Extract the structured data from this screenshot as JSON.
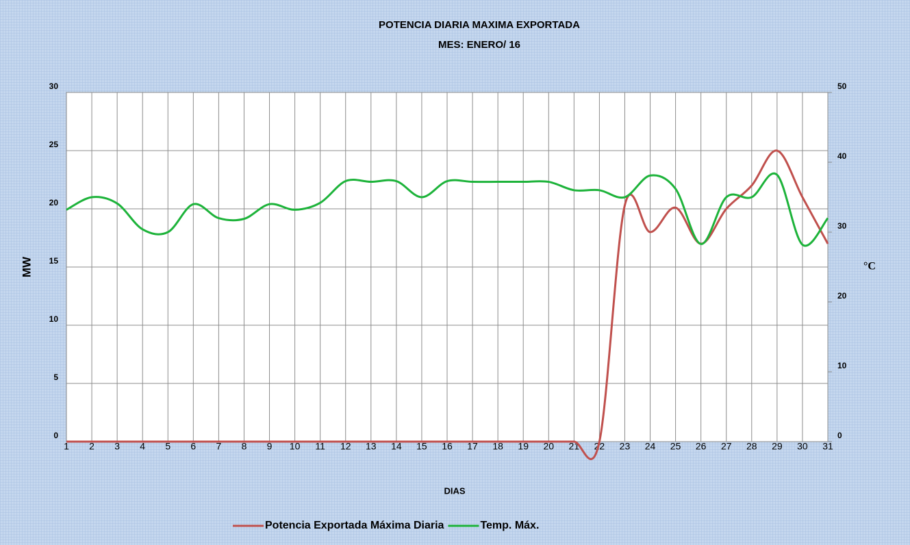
{
  "chart_data": {
    "type": "line",
    "title": "POTENCIA DIARIA MAXIMA EXPORTADA",
    "subtitle": "MES:  ENERO/ 16",
    "x_label": "DIAS",
    "y_label": "MW",
    "y2_label": "°C",
    "x": [
      1,
      2,
      3,
      4,
      5,
      6,
      7,
      8,
      9,
      10,
      11,
      12,
      13,
      14,
      15,
      16,
      17,
      18,
      19,
      20,
      21,
      22,
      23,
      24,
      25,
      26,
      27,
      28,
      29,
      30,
      31
    ],
    "xlim": [
      1,
      31
    ],
    "xticks": [
      1,
      2,
      3,
      4,
      5,
      6,
      7,
      8,
      9,
      10,
      11,
      12,
      13,
      14,
      15,
      16,
      17,
      18,
      19,
      20,
      21,
      22,
      23,
      24,
      25,
      26,
      27,
      28,
      29,
      30,
      31
    ],
    "ylim": [
      0,
      30
    ],
    "yticks": [
      0,
      5,
      10,
      15,
      20,
      25,
      30
    ],
    "y2lim": [
      0,
      50
    ],
    "y2ticks": [
      0,
      10,
      20,
      30,
      40,
      50
    ],
    "grid": true,
    "legend": "bottom",
    "series": [
      {
        "name": "Potencia Exportada Máxima Diaria",
        "color": "#c0504d",
        "values": [
          0,
          0,
          0,
          0,
          0,
          0,
          0,
          0,
          0,
          0,
          0,
          0,
          0,
          0,
          0,
          0,
          0,
          0,
          0,
          0,
          0,
          0,
          20.3,
          18,
          20.1,
          17,
          20,
          22,
          25,
          21,
          17
        ]
      },
      {
        "name": "Temp. Máx.",
        "color": "#1db33a",
        "axis": "y2",
        "values": [
          33.2,
          35,
          34.1,
          30.4,
          30,
          34,
          32,
          31.9,
          34,
          33.2,
          34.2,
          37.3,
          37.2,
          37.3,
          35,
          37.3,
          37.2,
          37.2,
          37.2,
          37.2,
          36,
          36,
          35,
          38.1,
          36.2,
          28.3,
          35,
          35,
          38.2,
          28.2,
          32
        ]
      }
    ]
  }
}
